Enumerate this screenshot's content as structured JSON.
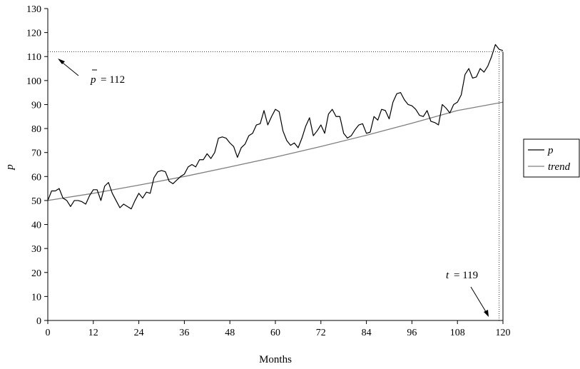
{
  "chart_data": {
    "type": "line",
    "xlabel": "Months",
    "ylabel": "p",
    "xlim": [
      0,
      120
    ],
    "ylim": [
      0,
      130
    ],
    "xticks": [
      0,
      12,
      24,
      36,
      48,
      60,
      72,
      84,
      96,
      108,
      120
    ],
    "yticks": [
      0,
      10,
      20,
      30,
      40,
      50,
      60,
      70,
      80,
      90,
      100,
      110,
      120,
      130
    ],
    "grid": false,
    "legend_position": "right",
    "series": [
      {
        "name": "p",
        "color": "#000000",
        "x": [
          0,
          1,
          2,
          3,
          4,
          5,
          6,
          7,
          8,
          9,
          10,
          11,
          12,
          13,
          14,
          15,
          16,
          17,
          18,
          19,
          20,
          21,
          22,
          23,
          24,
          25,
          26,
          27,
          28,
          29,
          30,
          31,
          32,
          33,
          34,
          35,
          36,
          37,
          38,
          39,
          40,
          41,
          42,
          43,
          44,
          45,
          46,
          47,
          48,
          49,
          50,
          51,
          52,
          53,
          54,
          55,
          56,
          57,
          58,
          59,
          60,
          61,
          62,
          63,
          64,
          65,
          66,
          67,
          68,
          69,
          70,
          71,
          72,
          73,
          74,
          75,
          76,
          77,
          78,
          79,
          80,
          81,
          82,
          83,
          84,
          85,
          86,
          87,
          88,
          89,
          90,
          91,
          92,
          93,
          94,
          95,
          96,
          97,
          98,
          99,
          100,
          101,
          102,
          103,
          104,
          105,
          106,
          107,
          108,
          109,
          110,
          111,
          112,
          113,
          114,
          115,
          116,
          117,
          118,
          119,
          120
        ],
        "y": [
          50,
          54,
          54,
          55,
          51,
          50,
          47.5,
          50,
          50,
          49.5,
          48.5,
          52,
          54.5,
          54.5,
          50,
          56,
          57.5,
          53,
          50,
          47,
          48.5,
          47.5,
          46.5,
          50,
          53,
          51,
          53.5,
          53,
          59.5,
          62,
          62.5,
          62,
          58,
          57,
          58.5,
          60,
          61,
          64,
          65,
          64,
          67,
          67,
          69.5,
          67.5,
          70,
          76,
          76.5,
          76,
          74,
          72.5,
          68,
          72,
          73.5,
          77,
          78,
          81.5,
          82,
          87.5,
          81.5,
          85,
          88,
          87,
          79,
          75,
          73,
          74,
          72,
          76,
          81,
          84.5,
          77,
          79,
          81.5,
          78,
          86,
          88,
          85,
          85,
          78,
          76,
          77,
          79.5,
          81.5,
          82,
          78,
          78.5,
          85,
          83.5,
          88,
          87.5,
          84,
          91,
          94.5,
          95,
          92,
          90,
          89.5,
          88,
          85.5,
          85,
          87.5,
          83,
          82.5,
          81.5,
          90,
          88.5,
          86.5,
          90,
          91,
          94,
          102.5,
          105,
          101,
          101.5,
          105,
          103.5,
          106,
          110,
          115,
          113,
          112.5
        ]
      },
      {
        "name": "trend",
        "color": "#7f7f7f",
        "x": [
          0,
          12,
          24,
          36,
          48,
          60,
          72,
          84,
          96,
          108,
          120
        ],
        "y": [
          50,
          53,
          56.4,
          60,
          64,
          68.1,
          72.5,
          77.2,
          82.2,
          87.5,
          91
        ]
      }
    ],
    "annotations": [
      {
        "label": "p̄ = 112",
        "bar_symbol": "p",
        "equals_text": "= 112",
        "reference_line": {
          "axis": "y",
          "value": 112
        }
      },
      {
        "label": "t = 119",
        "symbol": "t",
        "equals_text": "= 119",
        "reference_line": {
          "axis": "x",
          "value": 119
        }
      }
    ]
  }
}
